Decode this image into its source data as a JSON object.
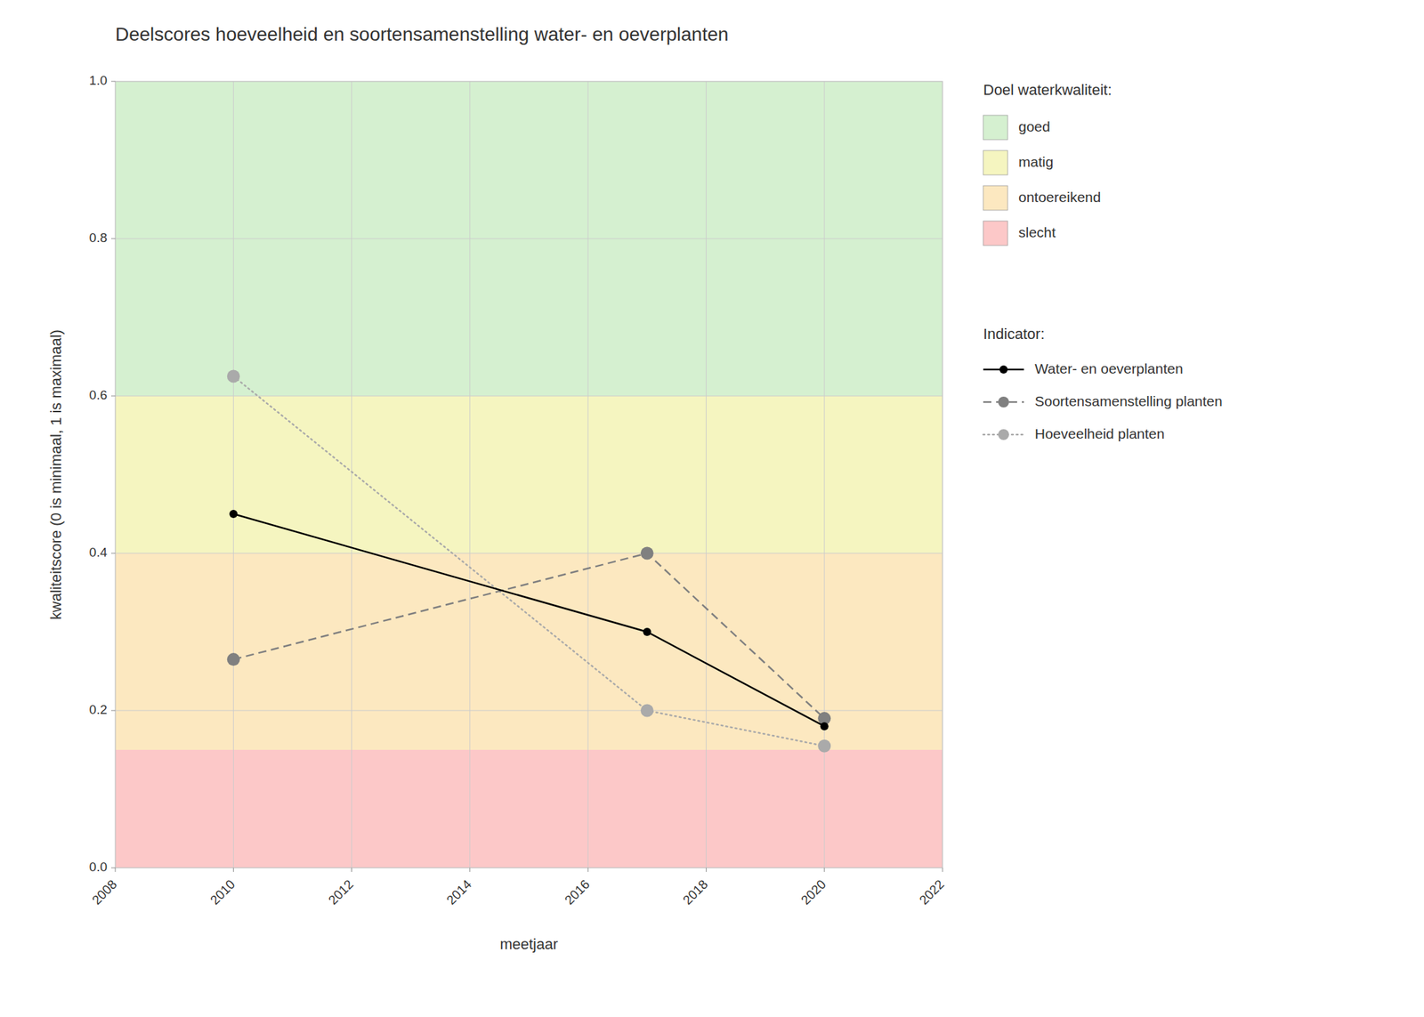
{
  "chart_data": {
    "type": "line",
    "title": "Deelscores hoeveelheid en soortensamenstelling water- en oeverplanten",
    "xlabel": "meetjaar",
    "ylabel": "kwaliteitscore (0 is minimaal, 1 is maximaal)",
    "x": [
      2010,
      2017,
      2020
    ],
    "xlim": [
      2008,
      2022
    ],
    "ylim": [
      0.0,
      1.0
    ],
    "xticks": [
      2008,
      2010,
      2012,
      2014,
      2016,
      2018,
      2020,
      2022
    ],
    "yticks": [
      {
        "value": 0.0,
        "label": "0.0"
      },
      0.2,
      0.4,
      0.6,
      0.8,
      {
        "value": 1.0,
        "label": "1.0"
      }
    ],
    "grid": true,
    "legend": "right",
    "band_legend_title": "Doel waterkwaliteit:",
    "series_legend_title": "Indicator:",
    "bands": [
      {
        "name": "goed",
        "color": "#d5f0d0",
        "range": [
          0.6,
          1.0
        ]
      },
      {
        "name": "matig",
        "color": "#f5f5c0",
        "range": [
          0.4,
          0.6
        ]
      },
      {
        "name": "ontoereikend",
        "color": "#fce8c0",
        "range": [
          0.15,
          0.4
        ]
      },
      {
        "name": "slecht",
        "color": "#fcc8c8",
        "range": [
          0.0,
          0.15
        ]
      }
    ],
    "series": [
      {
        "name": "Water- en oeverplanten",
        "color": "#000000",
        "line_style": "solid",
        "marker": "circle",
        "values": [
          0.45,
          0.3,
          0.18
        ]
      },
      {
        "name": "Soortensamenstelling planten",
        "color": "#808080",
        "line_style": "dashed",
        "marker": "circle",
        "values": [
          0.265,
          0.4,
          0.19
        ]
      },
      {
        "name": "Hoeveelheid planten",
        "color": "#aaaaaa",
        "line_style": "dotted",
        "marker": "circle",
        "values": [
          0.625,
          0.2,
          0.155
        ]
      }
    ]
  }
}
